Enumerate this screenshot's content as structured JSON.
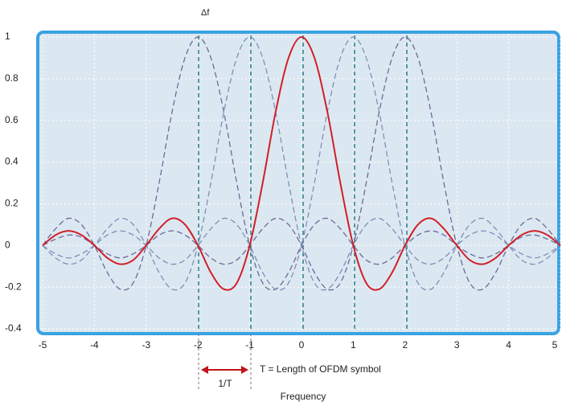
{
  "chart_data": {
    "type": "line",
    "xlabel": "Frequency",
    "annotations": [
      "Δf",
      "T = Length of OFDM symbol",
      "1/T"
    ],
    "x": [
      -5,
      -4.75,
      -4.5,
      -4.25,
      -4,
      -3.75,
      -3.5,
      -3.25,
      -3,
      -2.75,
      -2.5,
      -2.25,
      -2,
      -1.75,
      -1.5,
      -1.25,
      -1,
      -0.75,
      -0.5,
      -0.25,
      0,
      0.25,
      0.5,
      0.75,
      1,
      1.25,
      1.5,
      1.75,
      2,
      2.25,
      2.5,
      2.75,
      3,
      3.25,
      3.5,
      3.75,
      4,
      4.25,
      4.5,
      4.75,
      5
    ],
    "series": [
      {
        "color": "#6c6a98",
        "line_style": "dashed",
        "values": [
          0,
          0.08,
          0.13,
          0.1,
          0,
          -0.13,
          -0.21,
          -0.18,
          0,
          0.3,
          0.64,
          0.9,
          1,
          0.9,
          0.64,
          0.3,
          0,
          -0.18,
          -0.21,
          -0.13,
          0,
          0.1,
          0.13,
          0.08,
          0,
          -0.07,
          -0.09,
          -0.06,
          0,
          0.05,
          0.07,
          0.05,
          0,
          -0.04,
          -0.06,
          -0.04,
          0,
          0.04,
          0.05,
          0.03,
          0
        ]
      },
      {
        "color": "#7f8fb8",
        "line_style": "dashed",
        "values": [
          0,
          -0.06,
          -0.09,
          -0.07,
          0,
          0.08,
          0.13,
          0.1,
          0,
          -0.13,
          -0.21,
          -0.18,
          0,
          0.3,
          0.64,
          0.9,
          1,
          0.9,
          0.64,
          0.3,
          0,
          -0.18,
          -0.21,
          -0.13,
          0,
          0.1,
          0.13,
          0.08,
          0,
          -0.07,
          -0.09,
          -0.06,
          0,
          0.05,
          0.07,
          0.05,
          0,
          -0.04,
          -0.06,
          -0.04,
          0
        ]
      },
      {
        "color": "#d0202a",
        "line_style": "solid",
        "values": [
          0,
          0.05,
          0.07,
          0.05,
          0,
          -0.06,
          -0.09,
          -0.07,
          0,
          0.08,
          0.13,
          0.1,
          0,
          -0.13,
          -0.21,
          -0.18,
          0,
          0.3,
          0.64,
          0.9,
          1,
          0.9,
          0.64,
          0.3,
          0,
          -0.18,
          -0.21,
          -0.13,
          0,
          0.1,
          0.13,
          0.08,
          0,
          -0.07,
          -0.09,
          -0.06,
          0,
          0.05,
          0.07,
          0.05,
          0
        ]
      },
      {
        "color": "#7f8fb8",
        "line_style": "dashed",
        "values": [
          0,
          -0.04,
          -0.06,
          -0.04,
          0,
          0.05,
          0.07,
          0.05,
          0,
          -0.06,
          -0.09,
          -0.07,
          0,
          0.08,
          0.13,
          0.1,
          0,
          -0.13,
          -0.21,
          -0.18,
          0,
          0.3,
          0.64,
          0.9,
          1,
          0.9,
          0.64,
          0.3,
          0,
          -0.18,
          -0.21,
          -0.13,
          0,
          0.1,
          0.13,
          0.08,
          0,
          -0.07,
          -0.09,
          -0.06,
          0
        ]
      },
      {
        "color": "#6c6a98",
        "line_style": "dashed",
        "values": [
          0,
          0.03,
          0.05,
          0.04,
          0,
          -0.04,
          -0.06,
          -0.04,
          0,
          0.05,
          0.07,
          0.05,
          0,
          -0.06,
          -0.09,
          -0.07,
          0,
          0.08,
          0.13,
          0.1,
          0,
          -0.13,
          -0.21,
          -0.18,
          0,
          0.3,
          0.64,
          0.9,
          1,
          0.9,
          0.64,
          0.3,
          0,
          -0.18,
          -0.21,
          -0.13,
          0,
          0.1,
          0.13,
          0.08,
          0
        ]
      }
    ],
    "xlim": [
      -5,
      5
    ],
    "ylim": [
      -0.4,
      1
    ],
    "xticks": [
      -5,
      -4,
      -3,
      -2,
      -1,
      0,
      1,
      2,
      3,
      4,
      5
    ],
    "yticks": [
      -0.4,
      -0.2,
      0,
      0.2,
      0.4,
      0.6,
      0.8,
      1
    ],
    "grid": true
  }
}
